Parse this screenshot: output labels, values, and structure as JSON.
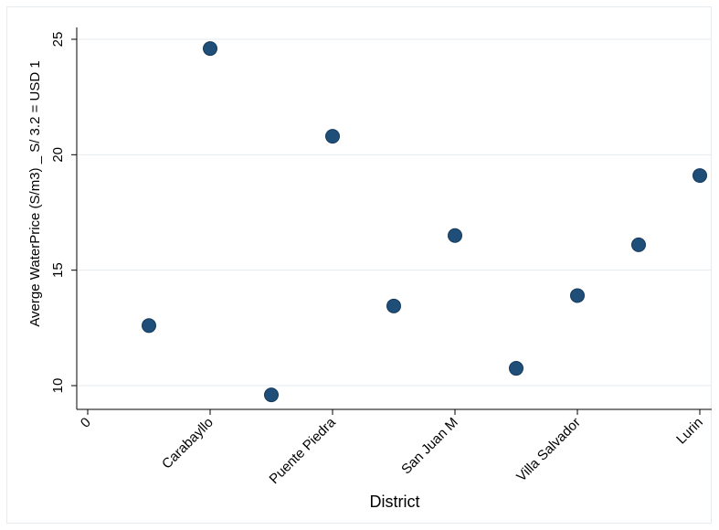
{
  "chart_data": {
    "type": "scatter",
    "title": "",
    "xlabel": "District",
    "ylabel": "Averge WaterPrice (S/m3) _  S/ 3.2 = USD 1",
    "xlim": [
      0,
      10
    ],
    "ylim": [
      9.5,
      25.5
    ],
    "x_ticks": [
      {
        "value": 0,
        "label": "0"
      },
      {
        "value": 2,
        "label": "Carabayllo"
      },
      {
        "value": 4,
        "label": "Puente Piedra"
      },
      {
        "value": 6,
        "label": "San Juan M"
      },
      {
        "value": 8,
        "label": "Villa Salvador"
      },
      {
        "value": 10,
        "label": "Lurin"
      }
    ],
    "y_ticks": [
      10,
      15,
      20,
      25
    ],
    "points": [
      {
        "x": 1,
        "y": 12.6
      },
      {
        "x": 2,
        "y": 24.6
      },
      {
        "x": 3,
        "y": 9.6
      },
      {
        "x": 4,
        "y": 20.8
      },
      {
        "x": 5,
        "y": 13.45
      },
      {
        "x": 6,
        "y": 16.5
      },
      {
        "x": 7,
        "y": 10.75
      },
      {
        "x": 8,
        "y": 13.9
      },
      {
        "x": 9,
        "y": 16.1
      },
      {
        "x": 10,
        "y": 19.1
      }
    ],
    "marker_color": "#1f4e79",
    "grid": true,
    "legend": false
  }
}
